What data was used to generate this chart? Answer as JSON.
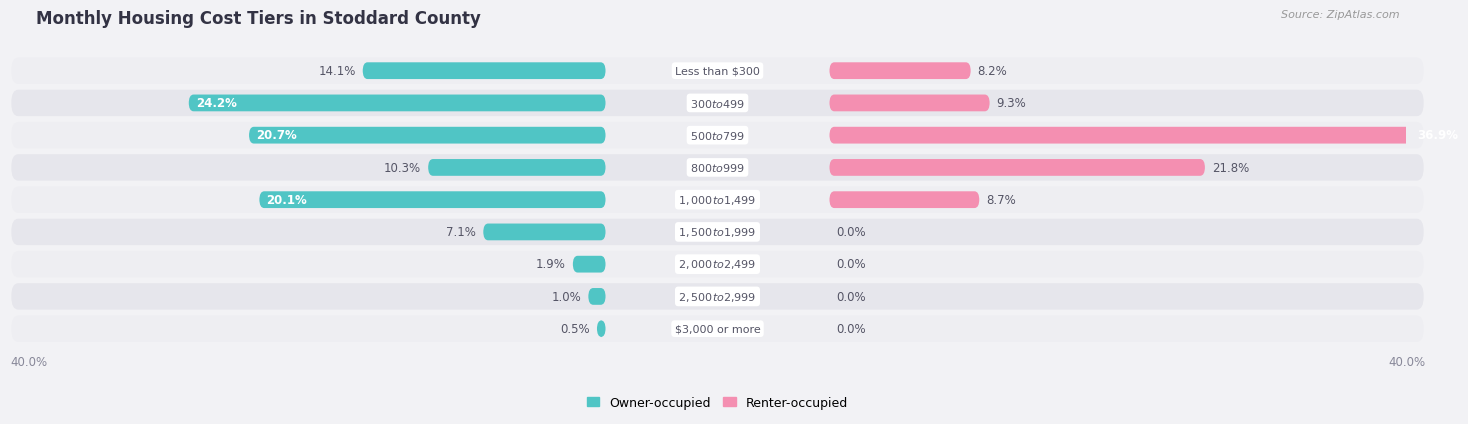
{
  "title": "Monthly Housing Cost Tiers in Stoddard County",
  "source": "Source: ZipAtlas.com",
  "categories": [
    "Less than $300",
    "$300 to $499",
    "$500 to $799",
    "$800 to $999",
    "$1,000 to $1,499",
    "$1,500 to $1,999",
    "$2,000 to $2,499",
    "$2,500 to $2,999",
    "$3,000 or more"
  ],
  "owner_values": [
    14.1,
    24.2,
    20.7,
    10.3,
    20.1,
    7.1,
    1.9,
    1.0,
    0.5
  ],
  "renter_values": [
    8.2,
    9.3,
    36.9,
    21.8,
    8.7,
    0.0,
    0.0,
    0.0,
    0.0
  ],
  "owner_color": "#50C5C5",
  "renter_color": "#F48FB1",
  "renter_color_bold": "#EE6699",
  "axis_limit": 40.0,
  "background_color": "#F2F2F5",
  "row_colors": [
    "#EEEEF2",
    "#E6E6EC"
  ],
  "label_dark": "#555566",
  "label_white": "#FFFFFF",
  "title_fontsize": 12,
  "bar_label_fontsize": 8.5,
  "category_fontsize": 8,
  "legend_fontsize": 9,
  "source_fontsize": 8,
  "axis_label_fontsize": 8.5
}
